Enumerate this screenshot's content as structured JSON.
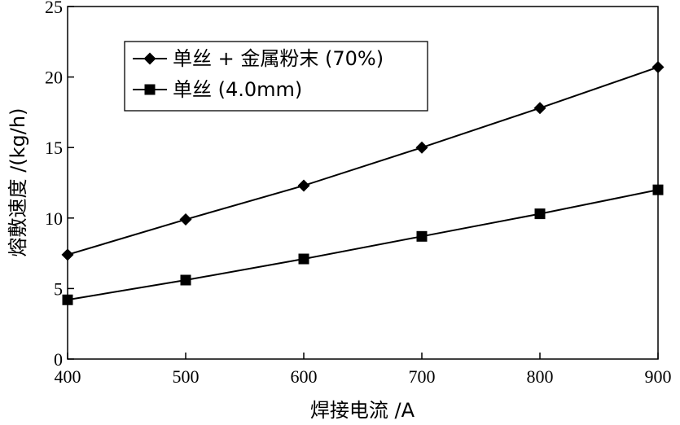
{
  "chart_data": {
    "type": "line",
    "x": [
      400,
      500,
      600,
      700,
      800,
      900
    ],
    "series": [
      {
        "name": "单丝 + 金属粉末 (70%)",
        "marker": "diamond",
        "values": [
          7.4,
          9.9,
          12.3,
          15.0,
          17.8,
          20.7
        ]
      },
      {
        "name": "单丝 (4.0mm)",
        "marker": "square",
        "values": [
          4.2,
          5.6,
          7.1,
          8.7,
          10.3,
          12.0
        ]
      }
    ],
    "xlabel": "焊接电流 /A",
    "ylabel": "熔敷速度 /(kg/h)",
    "xlim": [
      400,
      900
    ],
    "ylim": [
      0,
      25
    ],
    "xticks": [
      "400",
      "500",
      "600",
      "700",
      "800",
      "900"
    ],
    "yticks": [
      "0",
      "5",
      "10",
      "15",
      "20",
      "25"
    ],
    "grid": false,
    "legend_position": "top-left",
    "colors": {
      "line": "#000000",
      "background": "#ffffff"
    }
  }
}
